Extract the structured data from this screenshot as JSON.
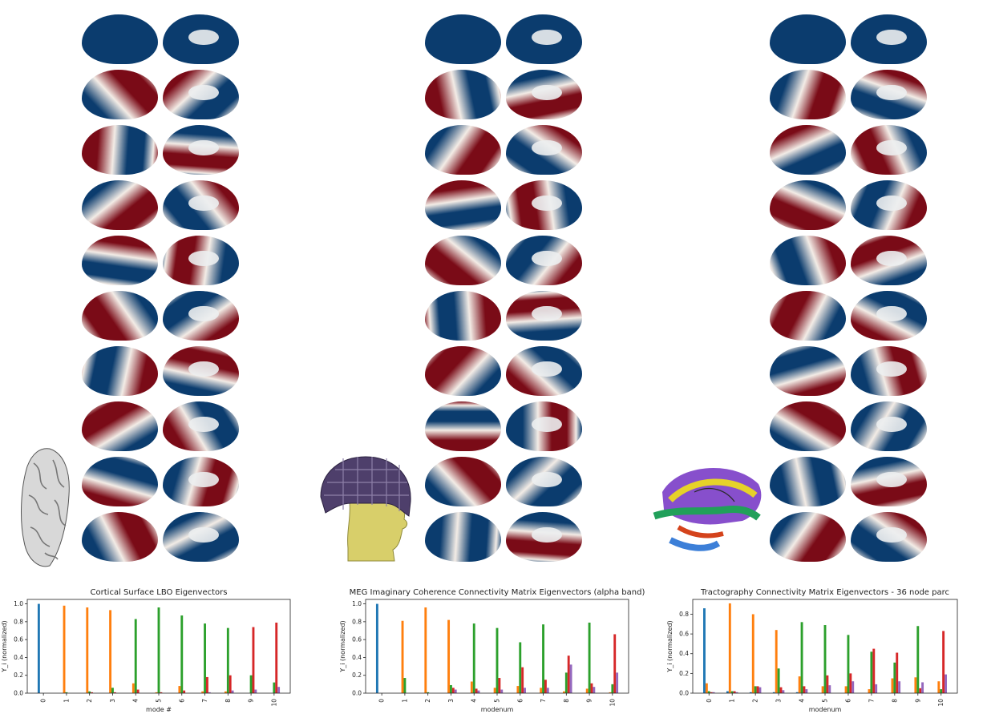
{
  "colors": {
    "c0": "#1f77b4",
    "c1": "#ff7f0e",
    "c2": "#2ca02c",
    "c3": "#d62728",
    "c4": "#9467bd",
    "brain_blue": "#0b3c6e",
    "brain_red": "#7a0b17",
    "brain_light": "#f3ece6"
  },
  "chart_data": [
    {
      "type": "bar",
      "title": "Cortical Surface LBO Eigenvectors",
      "xlabel": "mode #",
      "ylabel": "Y_i (normalized)",
      "ylim": [
        0,
        1.05
      ],
      "yticks": [
        "0.0",
        "0.2",
        "0.4",
        "0.6",
        "0.8",
        "1.0"
      ],
      "categories": [
        "0",
        "1",
        "2",
        "3",
        "4",
        "5",
        "6",
        "7",
        "8",
        "9",
        "10"
      ],
      "series": [
        {
          "values": [
            1.0,
            0.0,
            0.0,
            0.0,
            0.0,
            0.0,
            0.0,
            0.0,
            0.0,
            0.0,
            0.0
          ]
        },
        {
          "values": [
            0.0,
            0.98,
            0.96,
            0.93,
            0.11,
            0.01,
            0.08,
            0.02,
            0.02,
            0.0,
            0.0
          ]
        },
        {
          "values": [
            0.0,
            0.01,
            0.02,
            0.06,
            0.83,
            0.96,
            0.87,
            0.78,
            0.73,
            0.2,
            0.12
          ]
        },
        {
          "values": [
            0.0,
            0.0,
            0.01,
            0.01,
            0.04,
            0.01,
            0.03,
            0.18,
            0.2,
            0.74,
            0.79
          ]
        },
        {
          "values": [
            0.0,
            0.0,
            0.0,
            0.0,
            0.0,
            0.0,
            0.0,
            0.01,
            0.03,
            0.04,
            0.07
          ]
        }
      ]
    },
    {
      "type": "bar",
      "title": "MEG Imaginary Coherence Connectivity Matrix Eigenvectors (alpha band)",
      "xlabel": "modenum",
      "ylabel": "Y_i (normalized)",
      "ylim": [
        0,
        1.05
      ],
      "yticks": [
        "0.0",
        "0.2",
        "0.4",
        "0.6",
        "0.8",
        "1.0"
      ],
      "categories": [
        "0",
        "1",
        "2",
        "3",
        "4",
        "5",
        "6",
        "7",
        "8",
        "9",
        "10"
      ],
      "series": [
        {
          "values": [
            1.0,
            0.0,
            0.0,
            0.0,
            0.0,
            0.0,
            0.0,
            0.0,
            0.0,
            0.0,
            0.0
          ]
        },
        {
          "values": [
            0.0,
            0.81,
            0.96,
            0.82,
            0.13,
            0.06,
            0.08,
            0.06,
            0.02,
            0.05,
            0.01
          ]
        },
        {
          "values": [
            0.0,
            0.17,
            0.01,
            0.09,
            0.78,
            0.73,
            0.57,
            0.77,
            0.23,
            0.79,
            0.1
          ]
        },
        {
          "values": [
            0.0,
            0.0,
            0.0,
            0.06,
            0.05,
            0.17,
            0.29,
            0.15,
            0.42,
            0.11,
            0.66
          ]
        },
        {
          "values": [
            0.0,
            0.0,
            0.0,
            0.04,
            0.03,
            0.04,
            0.06,
            0.06,
            0.32,
            0.07,
            0.23
          ]
        }
      ]
    },
    {
      "type": "bar",
      "title": "Tractography Connectivity Matrix Eigenvectors - 36 node parc",
      "xlabel": "modenum",
      "ylabel": "Y_i (normalized)",
      "ylim": [
        0,
        0.95
      ],
      "yticks": [
        "0.0",
        "0.2",
        "0.4",
        "0.6",
        "0.8"
      ],
      "categories": [
        "0",
        "1",
        "2",
        "3",
        "4",
        "5",
        "6",
        "7",
        "8",
        "9",
        "10"
      ],
      "series": [
        {
          "values": [
            0.86,
            0.02,
            0.01,
            0.01,
            0.01,
            0.0,
            0.0,
            0.0,
            0.0,
            0.0,
            0.0
          ]
        },
        {
          "values": [
            0.1,
            0.91,
            0.8,
            0.64,
            0.17,
            0.07,
            0.07,
            0.04,
            0.15,
            0.16,
            0.12
          ]
        },
        {
          "values": [
            0.02,
            0.02,
            0.07,
            0.25,
            0.72,
            0.69,
            0.59,
            0.42,
            0.31,
            0.68,
            0.04
          ]
        },
        {
          "values": [
            0.01,
            0.02,
            0.07,
            0.06,
            0.07,
            0.18,
            0.2,
            0.45,
            0.41,
            0.05,
            0.63
          ]
        },
        {
          "values": [
            0.01,
            0.01,
            0.06,
            0.03,
            0.04,
            0.08,
            0.12,
            0.09,
            0.12,
            0.11,
            0.19
          ]
        }
      ]
    }
  ]
}
